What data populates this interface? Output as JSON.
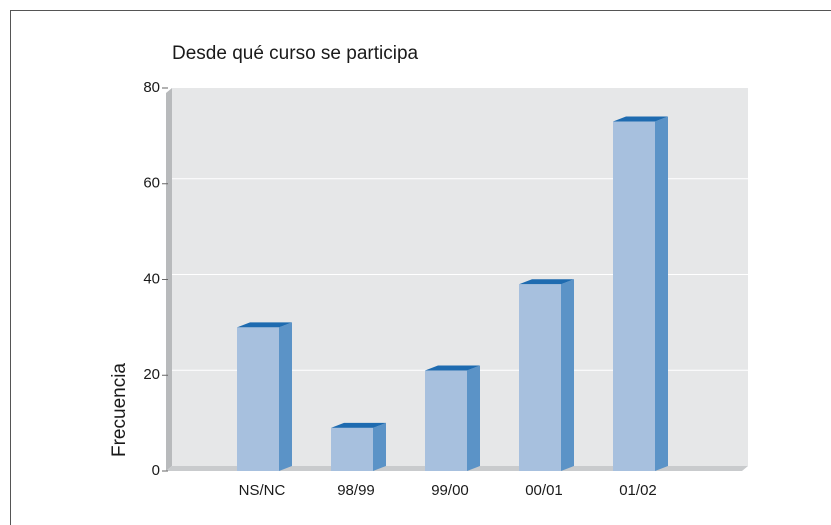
{
  "chart_data": {
    "type": "bar",
    "title": "Desde qué curso se participa",
    "y_label": "Frecuencia",
    "categories": [
      "NS/NC",
      "98/99",
      "99/00",
      "00/01",
      "01/02"
    ],
    "values": [
      30,
      9,
      21,
      39,
      73
    ],
    "color": "#a7c0de",
    "ylim": [
      0,
      80
    ],
    "yticks": [
      0,
      20,
      40,
      60,
      80
    ],
    "grid": true
  }
}
